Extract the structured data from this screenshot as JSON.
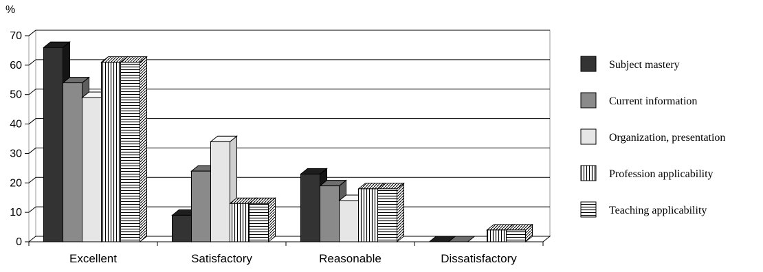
{
  "chart_data": {
    "type": "bar",
    "title": "",
    "xlabel": "",
    "ylabel": "%",
    "ylim": [
      0,
      70
    ],
    "yticks": [
      "0",
      "10",
      "20",
      "30",
      "40",
      "50",
      "60",
      "70"
    ],
    "grid": true,
    "legend_position": "right",
    "style": "3d-bar",
    "categories": [
      "Excellent",
      "Satisfactory",
      "Reasonable",
      "Dissatisfactory"
    ],
    "series": [
      {
        "name": "Subject mastery",
        "values": [
          66,
          9,
          23,
          0
        ],
        "fill": "dark",
        "color": "#3a3a3a"
      },
      {
        "name": "Current information",
        "values": [
          54,
          24,
          19,
          0
        ],
        "fill": "mid",
        "color": "#8c8c8c"
      },
      {
        "name": "Organization, presentation",
        "values": [
          49,
          34,
          14,
          0
        ],
        "fill": "light",
        "color": "#e6e6e6"
      },
      {
        "name": "Profession applicability",
        "values": [
          61,
          13,
          18,
          4
        ],
        "fill": "vstripes",
        "color": "#ffffff"
      },
      {
        "name": "Teaching applicability",
        "values": [
          61,
          13,
          18,
          4
        ],
        "fill": "hstripes",
        "color": "#bdbdbd"
      }
    ]
  }
}
